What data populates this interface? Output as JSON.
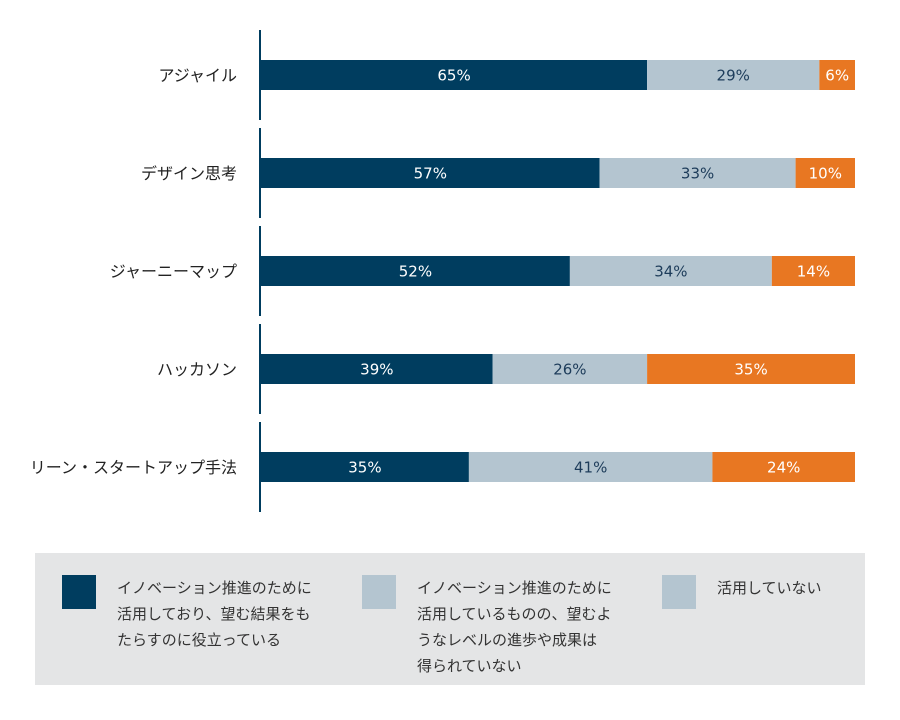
{
  "chart_data": {
    "type": "bar",
    "stacked": true,
    "orientation": "horizontal",
    "percent_of_total": true,
    "categories": [
      "アジャイル",
      "デザイン思考",
      "ジャーニーマップ",
      "ハッカソン",
      "リーン・スタートアップ手法"
    ],
    "series": [
      {
        "name": "イノベーション推進のために\n活用しており、望む結果をも\nたらすのに役立っている",
        "color": "#003d5f",
        "values": [
          65,
          57,
          52,
          39,
          35
        ],
        "labels": [
          "65%",
          "57%",
          "52%",
          "39%",
          "35%"
        ]
      },
      {
        "name": "イノベーション推進のために\n活用しているものの、望むよ\nうなレベルの進歩や成果は\n得られていない",
        "color": "#b4c5d0",
        "values": [
          29,
          33,
          34,
          26,
          41
        ],
        "labels": [
          "29%",
          "33%",
          "34%",
          "26%",
          "41%"
        ]
      },
      {
        "name": "活用していない",
        "color": "#e87722",
        "values": [
          6,
          10,
          14,
          35,
          24
        ],
        "labels": [
          "6%",
          "10%",
          "14%",
          "35%",
          "24%"
        ]
      }
    ],
    "xlim": [
      0,
      100
    ],
    "grid": false,
    "legend": "bottom"
  }
}
